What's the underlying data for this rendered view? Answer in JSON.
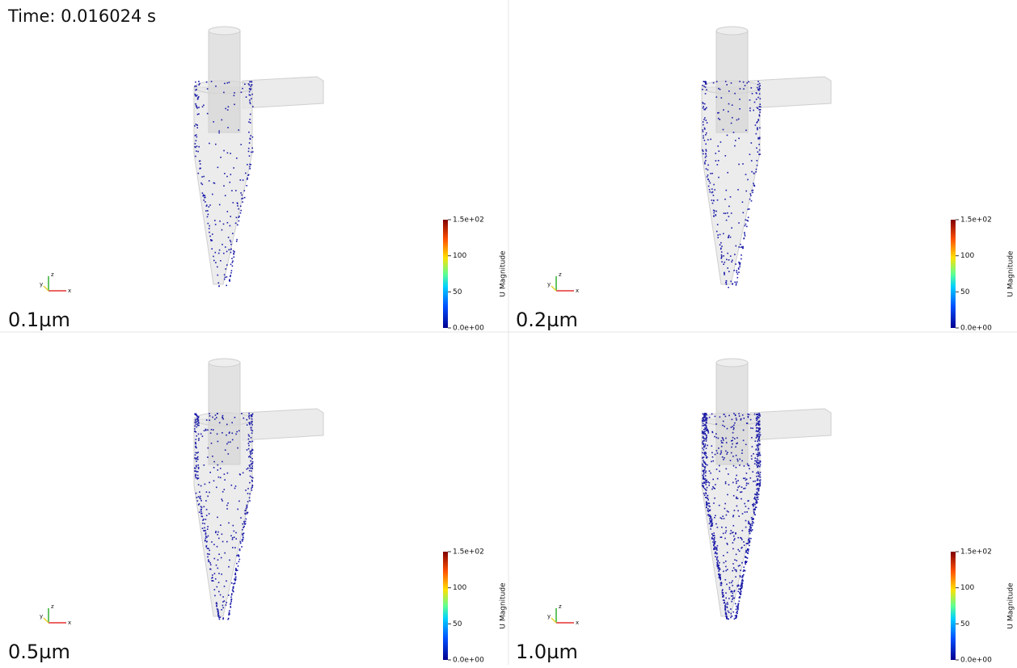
{
  "time_label": "Time: 0.016024 s",
  "panels": [
    {
      "label": "0.1µm"
    },
    {
      "label": "0.2µm"
    },
    {
      "label": "0.5µm"
    },
    {
      "label": "1.0µm"
    }
  ],
  "axes_labels": {
    "x": "x",
    "y": "y",
    "z": "z"
  },
  "colorbar": {
    "title": "U Magnitude",
    "range": [
      0,
      150
    ],
    "ticks": [
      {
        "value": 0,
        "label": "0.0e+00"
      },
      50,
      100,
      {
        "value": 150,
        "label": "1.5e+02"
      }
    ]
  }
}
